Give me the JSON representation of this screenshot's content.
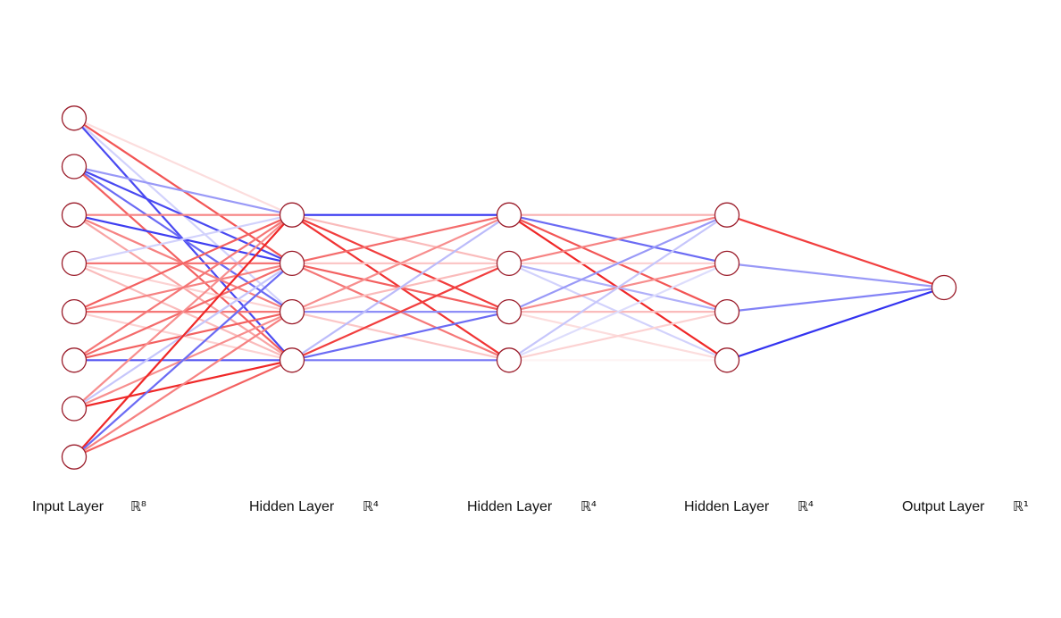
{
  "colors": {
    "positive": "#ee1c1c",
    "negative": "#1c1cee",
    "node_stroke": "#9b1d2b",
    "node_fill": "#ffffff",
    "background": "#ffffff"
  },
  "layers": [
    {
      "label": "Input Layer",
      "dim": "ℝ⁸",
      "nodes": 8
    },
    {
      "label": "Hidden Layer",
      "dim": "ℝ⁴",
      "nodes": 4
    },
    {
      "label": "Hidden Layer",
      "dim": "ℝ⁴",
      "nodes": 4
    },
    {
      "label": "Hidden Layer",
      "dim": "ℝ⁴",
      "nodes": 4
    },
    {
      "label": "Output Layer",
      "dim": "ℝ¹",
      "nodes": 1
    }
  ],
  "weights": [
    [
      [
        0.15,
        0.75,
        -0.2,
        -0.8
      ],
      [
        -0.45,
        -0.8,
        -0.65,
        0.7
      ],
      [
        0.55,
        -0.85,
        0.55,
        0.4
      ],
      [
        -0.2,
        0.6,
        0.2,
        0.3
      ],
      [
        0.7,
        0.55,
        0.6,
        0.2
      ],
      [
        0.6,
        0.65,
        0.7,
        -0.75
      ],
      [
        0.5,
        -0.25,
        0.5,
        0.95
      ],
      [
        0.95,
        -0.65,
        0.55,
        0.7
      ]
    ],
    [
      [
        -0.9,
        0.3,
        0.85,
        0.9
      ],
      [
        0.65,
        0.25,
        0.7,
        0.6
      ],
      [
        0.5,
        0.3,
        -0.5,
        0.25
      ],
      [
        -0.3,
        0.85,
        -0.65,
        -0.6
      ]
    ],
    [
      [
        0.35,
        -0.65,
        0.75,
        0.95
      ],
      [
        0.55,
        0.2,
        -0.35,
        -0.2
      ],
      [
        -0.45,
        0.5,
        0.3,
        0.15
      ],
      [
        -0.25,
        -0.15,
        0.2,
        0.05
      ]
    ],
    [
      [
        0.85
      ],
      [
        -0.45
      ],
      [
        -0.55
      ],
      [
        -0.9
      ]
    ]
  ]
}
